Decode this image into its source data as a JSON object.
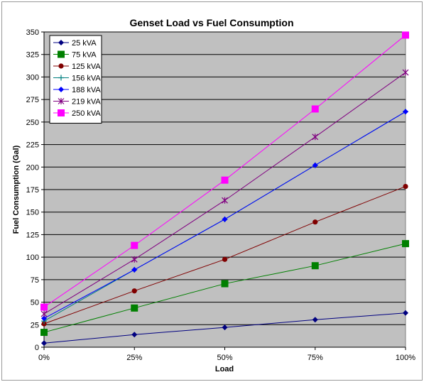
{
  "chart_data": {
    "type": "line",
    "title": "Genset Load vs Fuel Consumption",
    "xlabel": "Load",
    "ylabel": "Fuel Consumption (Gal)",
    "categories": [
      "0%",
      "25%",
      "50%",
      "75%",
      "100%"
    ],
    "ylim": [
      0,
      350
    ],
    "yticks": [
      0,
      25,
      50,
      75,
      100,
      125,
      150,
      175,
      200,
      225,
      250,
      275,
      300,
      325,
      350
    ],
    "grid": true,
    "legend_position": "top-left",
    "plot_background": "#c0c0c0",
    "series": [
      {
        "name": "25 kVA",
        "color": "#000080",
        "marker": "diamond",
        "values": [
          4.5,
          14,
          22,
          30.5,
          38
        ]
      },
      {
        "name": "75 kVA",
        "color": "#008000",
        "marker": "square",
        "values": [
          16.5,
          43.5,
          70.5,
          90.5,
          115
        ]
      },
      {
        "name": "125 kVA",
        "color": "#800000",
        "marker": "circle",
        "values": [
          26,
          62.5,
          97.5,
          139,
          178.5
        ]
      },
      {
        "name": "156 kVA",
        "color": "#008080",
        "marker": "plus",
        "values": [
          29,
          86,
          142,
          202,
          261.5
        ]
      },
      {
        "name": "188 kVA",
        "color": "#0000ff",
        "marker": "diamond",
        "values": [
          32,
          86,
          142,
          202,
          261.5
        ]
      },
      {
        "name": "219 kVA",
        "color": "#800080",
        "marker": "star",
        "values": [
          37,
          97.5,
          163,
          233.5,
          305
        ]
      },
      {
        "name": "250 kVA",
        "color": "#ff00ff",
        "marker": "square",
        "values": [
          44.5,
          113,
          185.5,
          264.5,
          346.5
        ]
      }
    ]
  }
}
